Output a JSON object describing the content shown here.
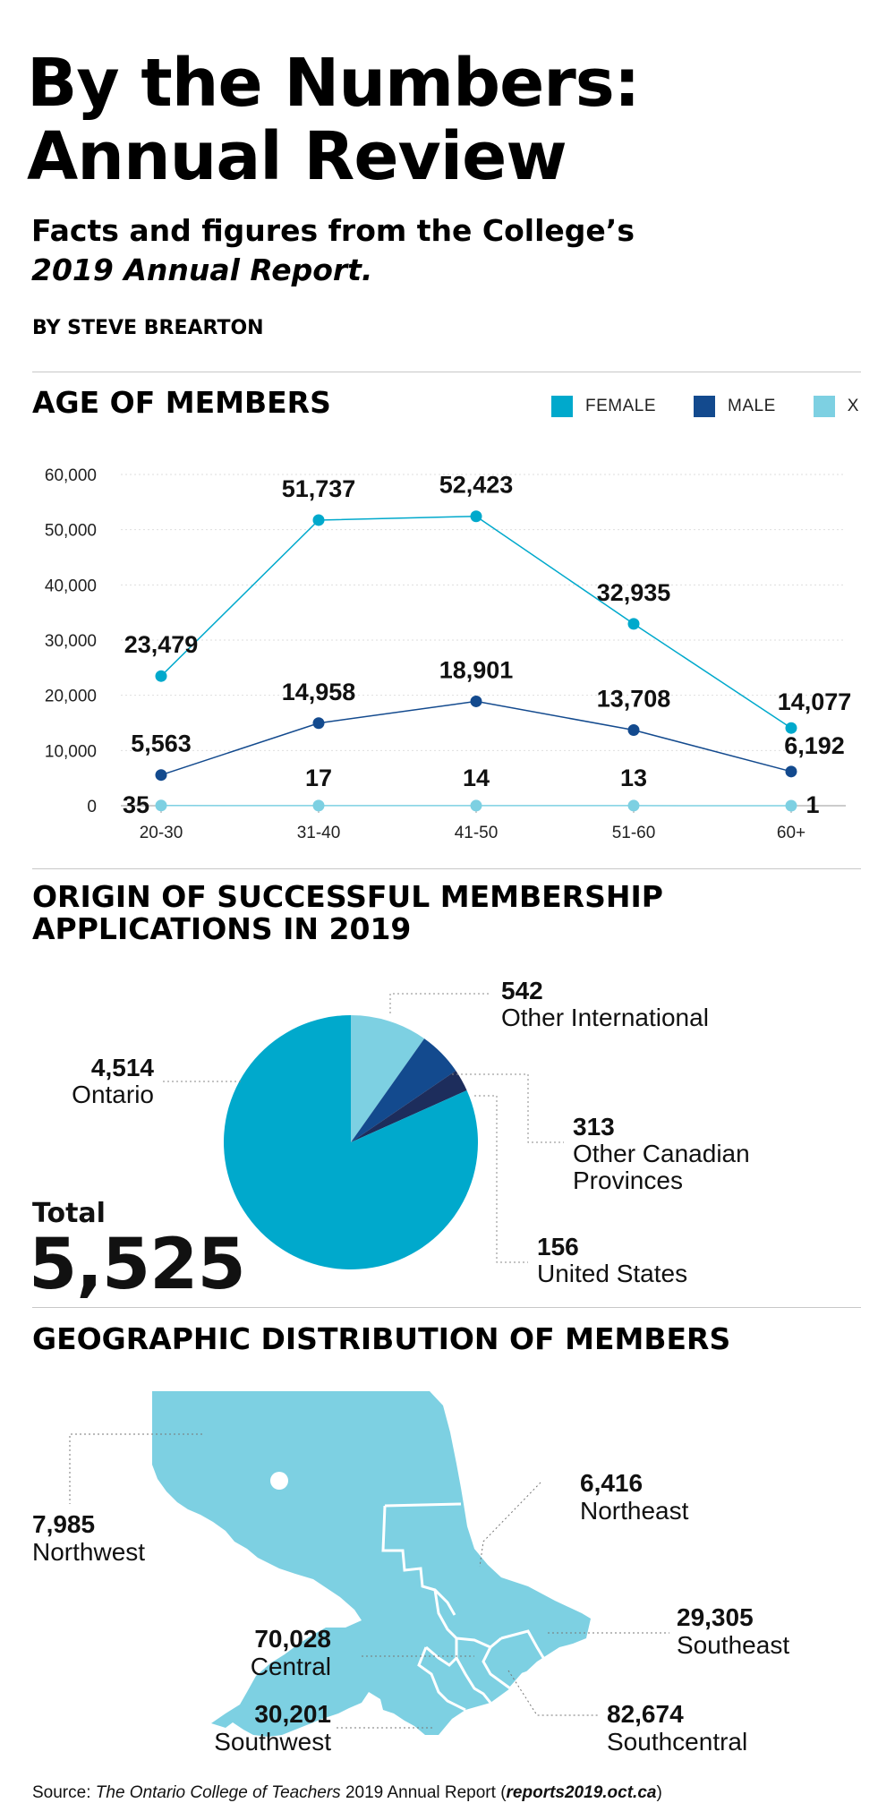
{
  "header": {
    "title_line1": "By the Numbers:",
    "title_line2": "Annual Review",
    "subtitle_line1": "Facts and figures from the College’s",
    "subtitle_line2": "2019 Annual Report.",
    "byline": "BY STEVE BREARTON"
  },
  "age_section": {
    "title": "AGE OF MEMBERS",
    "legend": [
      {
        "label": "FEMALE",
        "color": "#00a9cc"
      },
      {
        "label": "MALE",
        "color": "#134a8e"
      },
      {
        "label": "X",
        "color": "#7dd0e2"
      }
    ]
  },
  "origin_section": {
    "title_line1": "ORIGIN OF SUCCESSFUL MEMBERSHIP",
    "title_line2": "APPLICATIONS IN 2019",
    "total_label": "Total",
    "total_value": "5,525"
  },
  "geo_section": {
    "title": "GEOGRAPHIC DISTRIBUTION OF MEMBERS",
    "map_color": "#7dd0e2"
  },
  "source": {
    "prefix": "Source: ",
    "publication": "The Ontario College of Teachers",
    "middle": " 2019 Annual Report (",
    "url": "reports2019.oct.ca",
    "suffix": ")"
  },
  "chart_data": [
    {
      "type": "line",
      "categories": [
        "20-30",
        "31-40",
        "41-50",
        "51-60",
        "60+"
      ],
      "ylim": [
        0,
        60000
      ],
      "yticks": [
        "0",
        "10,000",
        "20,000",
        "30,000",
        "40,000",
        "50,000",
        "60,000"
      ],
      "grid": true,
      "legend_position": "top-right",
      "series": [
        {
          "name": "FEMALE",
          "color": "#00a9cc",
          "values": [
            23479,
            51737,
            52423,
            32935,
            14077
          ],
          "labels": [
            "23,479",
            "51,737",
            "52,423",
            "32,935",
            "14,077"
          ]
        },
        {
          "name": "MALE",
          "color": "#134a8e",
          "values": [
            5563,
            14958,
            18901,
            13708,
            6192
          ],
          "labels": [
            "5,563",
            "14,958",
            "18,901",
            "13,708",
            "6,192"
          ]
        },
        {
          "name": "X",
          "color": "#7dd0e2",
          "values": [
            35,
            17,
            14,
            13,
            1
          ],
          "labels": [
            "35",
            "17",
            "14",
            "13",
            "1"
          ]
        }
      ]
    },
    {
      "type": "pie",
      "slices": [
        {
          "name": "Ontario",
          "value": 4514,
          "label": "4,514",
          "color": "#00a9cc"
        },
        {
          "name": "Other International",
          "value": 542,
          "label": "542",
          "color": "#7dd0e2"
        },
        {
          "name": "Other Canadian Provinces",
          "value": 313,
          "label": "313",
          "color": "#134a8e"
        },
        {
          "name": "United States",
          "value": 156,
          "label": "156",
          "color": "#1d2d5c"
        }
      ],
      "total": 5525
    },
    {
      "type": "map",
      "regions": [
        {
          "name": "Northwest",
          "value": 7985,
          "label": "7,985"
        },
        {
          "name": "Northeast",
          "value": 6416,
          "label": "6,416"
        },
        {
          "name": "Central",
          "value": 70028,
          "label": "70,028"
        },
        {
          "name": "Southeast",
          "value": 29305,
          "label": "29,305"
        },
        {
          "name": "Southwest",
          "value": 30201,
          "label": "30,201"
        },
        {
          "name": "Southcentral",
          "value": 82674,
          "label": "82,674"
        }
      ]
    }
  ]
}
